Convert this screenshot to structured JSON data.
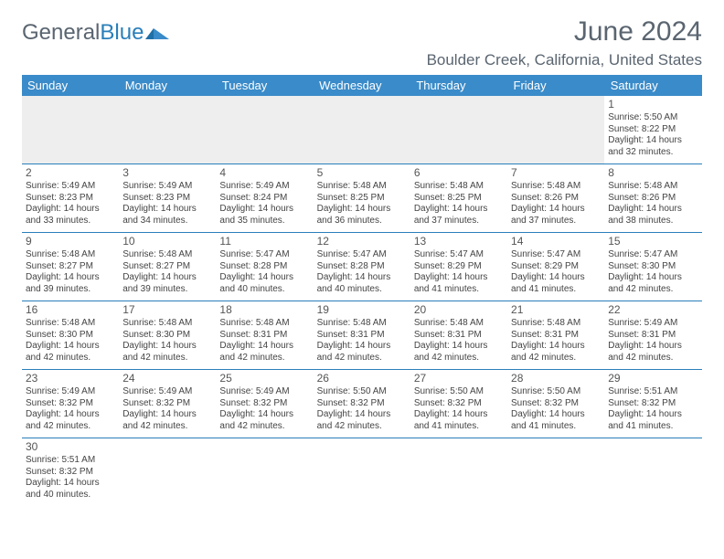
{
  "logo": {
    "text_gray": "General",
    "text_blue": "Blue"
  },
  "title": "June 2024",
  "location": "Boulder Creek, California, United States",
  "colors": {
    "header_bg": "#3a8bc9",
    "header_text": "#ffffff",
    "rule": "#2a7fba",
    "text_gray": "#5a6570",
    "empty_bg": "#eeeeee"
  },
  "weekdays": [
    "Sunday",
    "Monday",
    "Tuesday",
    "Wednesday",
    "Thursday",
    "Friday",
    "Saturday"
  ],
  "weeks": [
    [
      null,
      null,
      null,
      null,
      null,
      null,
      {
        "n": "1",
        "sr": "5:50 AM",
        "ss": "8:22 PM",
        "dl": "14 hours and 32 minutes."
      }
    ],
    [
      {
        "n": "2",
        "sr": "5:49 AM",
        "ss": "8:23 PM",
        "dl": "14 hours and 33 minutes."
      },
      {
        "n": "3",
        "sr": "5:49 AM",
        "ss": "8:23 PM",
        "dl": "14 hours and 34 minutes."
      },
      {
        "n": "4",
        "sr": "5:49 AM",
        "ss": "8:24 PM",
        "dl": "14 hours and 35 minutes."
      },
      {
        "n": "5",
        "sr": "5:48 AM",
        "ss": "8:25 PM",
        "dl": "14 hours and 36 minutes."
      },
      {
        "n": "6",
        "sr": "5:48 AM",
        "ss": "8:25 PM",
        "dl": "14 hours and 37 minutes."
      },
      {
        "n": "7",
        "sr": "5:48 AM",
        "ss": "8:26 PM",
        "dl": "14 hours and 37 minutes."
      },
      {
        "n": "8",
        "sr": "5:48 AM",
        "ss": "8:26 PM",
        "dl": "14 hours and 38 minutes."
      }
    ],
    [
      {
        "n": "9",
        "sr": "5:48 AM",
        "ss": "8:27 PM",
        "dl": "14 hours and 39 minutes."
      },
      {
        "n": "10",
        "sr": "5:48 AM",
        "ss": "8:27 PM",
        "dl": "14 hours and 39 minutes."
      },
      {
        "n": "11",
        "sr": "5:47 AM",
        "ss": "8:28 PM",
        "dl": "14 hours and 40 minutes."
      },
      {
        "n": "12",
        "sr": "5:47 AM",
        "ss": "8:28 PM",
        "dl": "14 hours and 40 minutes."
      },
      {
        "n": "13",
        "sr": "5:47 AM",
        "ss": "8:29 PM",
        "dl": "14 hours and 41 minutes."
      },
      {
        "n": "14",
        "sr": "5:47 AM",
        "ss": "8:29 PM",
        "dl": "14 hours and 41 minutes."
      },
      {
        "n": "15",
        "sr": "5:47 AM",
        "ss": "8:30 PM",
        "dl": "14 hours and 42 minutes."
      }
    ],
    [
      {
        "n": "16",
        "sr": "5:48 AM",
        "ss": "8:30 PM",
        "dl": "14 hours and 42 minutes."
      },
      {
        "n": "17",
        "sr": "5:48 AM",
        "ss": "8:30 PM",
        "dl": "14 hours and 42 minutes."
      },
      {
        "n": "18",
        "sr": "5:48 AM",
        "ss": "8:31 PM",
        "dl": "14 hours and 42 minutes."
      },
      {
        "n": "19",
        "sr": "5:48 AM",
        "ss": "8:31 PM",
        "dl": "14 hours and 42 minutes."
      },
      {
        "n": "20",
        "sr": "5:48 AM",
        "ss": "8:31 PM",
        "dl": "14 hours and 42 minutes."
      },
      {
        "n": "21",
        "sr": "5:48 AM",
        "ss": "8:31 PM",
        "dl": "14 hours and 42 minutes."
      },
      {
        "n": "22",
        "sr": "5:49 AM",
        "ss": "8:31 PM",
        "dl": "14 hours and 42 minutes."
      }
    ],
    [
      {
        "n": "23",
        "sr": "5:49 AM",
        "ss": "8:32 PM",
        "dl": "14 hours and 42 minutes."
      },
      {
        "n": "24",
        "sr": "5:49 AM",
        "ss": "8:32 PM",
        "dl": "14 hours and 42 minutes."
      },
      {
        "n": "25",
        "sr": "5:49 AM",
        "ss": "8:32 PM",
        "dl": "14 hours and 42 minutes."
      },
      {
        "n": "26",
        "sr": "5:50 AM",
        "ss": "8:32 PM",
        "dl": "14 hours and 42 minutes."
      },
      {
        "n": "27",
        "sr": "5:50 AM",
        "ss": "8:32 PM",
        "dl": "14 hours and 41 minutes."
      },
      {
        "n": "28",
        "sr": "5:50 AM",
        "ss": "8:32 PM",
        "dl": "14 hours and 41 minutes."
      },
      {
        "n": "29",
        "sr": "5:51 AM",
        "ss": "8:32 PM",
        "dl": "14 hours and 41 minutes."
      }
    ],
    [
      {
        "n": "30",
        "sr": "5:51 AM",
        "ss": "8:32 PM",
        "dl": "14 hours and 40 minutes."
      },
      null,
      null,
      null,
      null,
      null,
      null
    ]
  ],
  "labels": {
    "sunrise": "Sunrise:",
    "sunset": "Sunset:",
    "daylight": "Daylight:"
  }
}
